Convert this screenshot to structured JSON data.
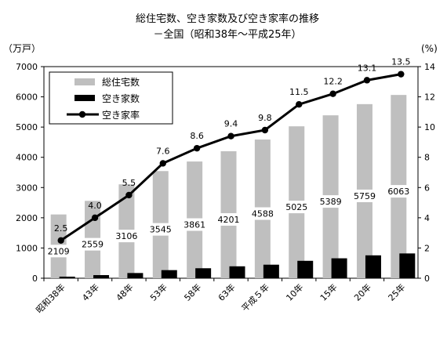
{
  "chart_data": {
    "type": "bar",
    "title": "総住宅数、空き家数及び空き家率の推移",
    "subtitle": "－全国（昭和38年～平成25年）",
    "y_left_unit": "（万戸）",
    "y_right_unit": "(%)",
    "ylim": [
      0,
      7000
    ],
    "y2lim": [
      0,
      14
    ],
    "y_ticks": [
      0,
      1000,
      2000,
      3000,
      4000,
      5000,
      6000,
      7000
    ],
    "y2_ticks": [
      0,
      2,
      4,
      6,
      8,
      10,
      12,
      14
    ],
    "grid": false,
    "legend_position": "top-left",
    "categories": [
      "昭和38年",
      "43年",
      "48年",
      "53年",
      "58年",
      "63年",
      "平成５年",
      "10年",
      "15年",
      "20年",
      "25年"
    ],
    "series": [
      {
        "name": "総住宅数",
        "type": "bar",
        "color": "#bfbfbf",
        "values": [
          2109,
          2559,
          3106,
          3545,
          3861,
          4201,
          4588,
          5025,
          5389,
          5759,
          6063
        ],
        "labels": [
          "2109",
          "2559",
          "3106",
          "3545",
          "3861",
          "4201",
          "4588",
          "5025",
          "5389",
          "5759",
          "6063"
        ]
      },
      {
        "name": "空き家数",
        "type": "bar",
        "color": "#000000",
        "values": [
          52,
          103,
          172,
          268,
          330,
          394,
          448,
          576,
          659,
          757,
          820
        ]
      },
      {
        "name": "空き家率",
        "type": "line",
        "axis": "right",
        "color": "#000000",
        "values": [
          2.5,
          4.0,
          5.5,
          7.6,
          8.6,
          9.4,
          9.8,
          11.5,
          12.2,
          13.1,
          13.5
        ],
        "labels": [
          "2.5",
          "4.0",
          "5.5",
          "7.6",
          "8.6",
          "9.4",
          "9.8",
          "11.5",
          "12.2",
          "13.1",
          "13.5"
        ]
      }
    ]
  }
}
